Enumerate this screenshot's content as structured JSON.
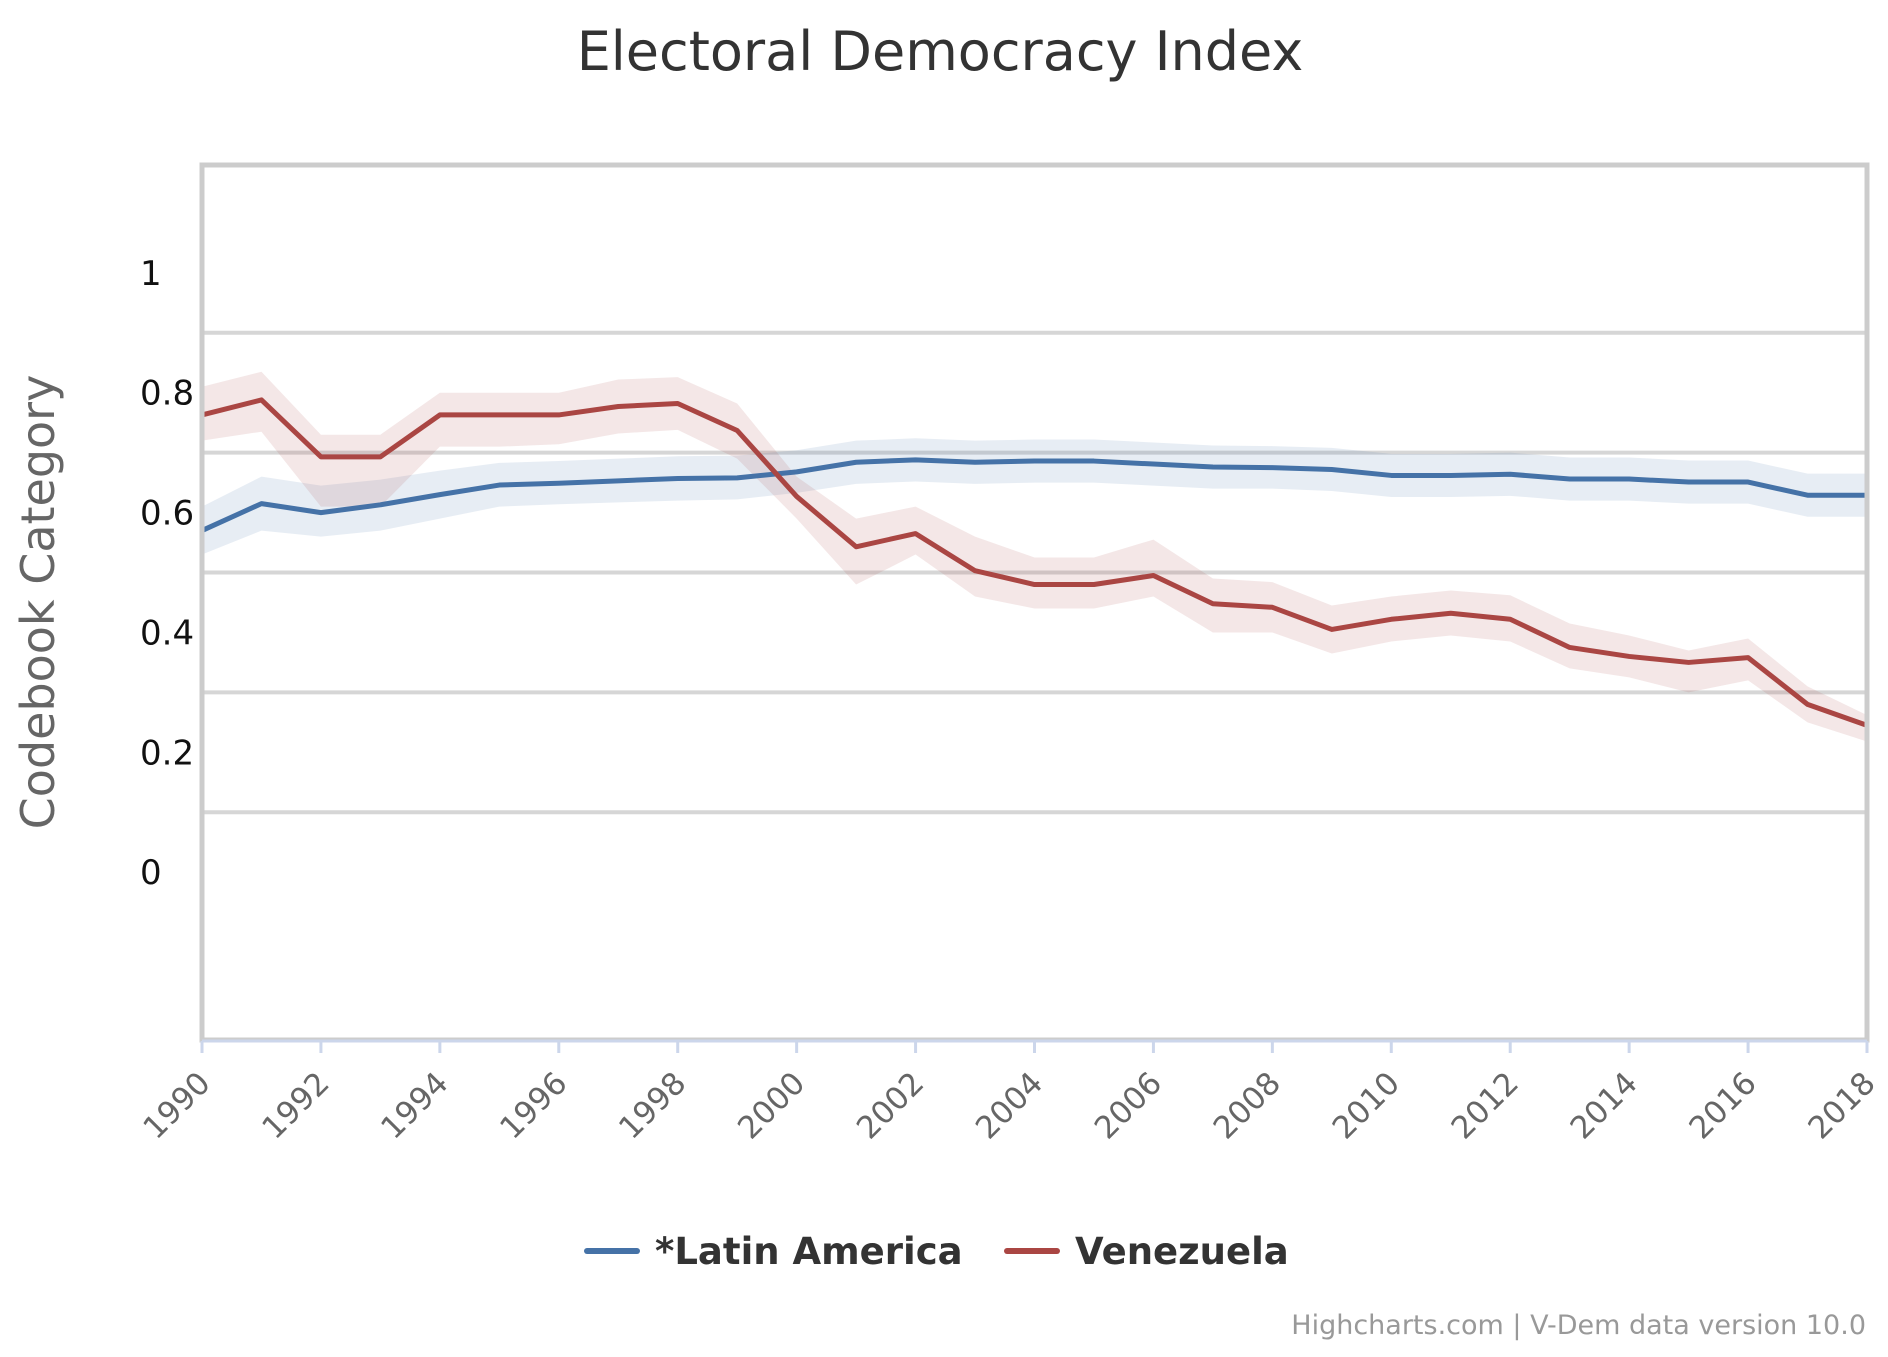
{
  "chart_data": {
    "type": "line",
    "title": "Electoral Democracy Index",
    "ylabel": "Codebook Category",
    "xlabel": "",
    "xlim": [
      1990,
      2018
    ],
    "ylim": [
      -0.28,
      1.18
    ],
    "x_ticks": [
      "1990",
      "1992",
      "1994",
      "1996",
      "1998",
      "2000",
      "2002",
      "2004",
      "2006",
      "2008",
      "2010",
      "2012",
      "2014",
      "2016",
      "2018"
    ],
    "y_ticks": [
      {
        "label": "1",
        "value": 1
      },
      {
        "label": "0.8",
        "value": 0.8
      },
      {
        "label": "0.6",
        "value": 0.6
      },
      {
        "label": "0.4",
        "value": 0.4
      },
      {
        "label": "0.2",
        "value": 0.2
      },
      {
        "label": "0",
        "value": 0
      }
    ],
    "grid_lines": [
      0.9,
      0.7,
      0.5,
      0.3,
      0.1
    ],
    "grid": true,
    "legend_position": "bottom-center",
    "x": [
      1990,
      1991,
      1992,
      1993,
      1994,
      1995,
      1996,
      1997,
      1998,
      1999,
      2000,
      2001,
      2002,
      2003,
      2004,
      2005,
      2006,
      2007,
      2008,
      2009,
      2010,
      2011,
      2012,
      2013,
      2014,
      2015,
      2016,
      2017,
      2018
    ],
    "series": [
      {
        "name": "*Latin America",
        "color": "#4572a7",
        "values": [
          0.57,
          0.615,
          0.6,
          0.613,
          0.63,
          0.646,
          0.649,
          0.653,
          0.657,
          0.658,
          0.668,
          0.684,
          0.688,
          0.684,
          0.686,
          0.686,
          0.681,
          0.676,
          0.675,
          0.672,
          0.662,
          0.662,
          0.664,
          0.656,
          0.656,
          0.651,
          0.651,
          0.629,
          0.629
        ],
        "lower": [
          0.53,
          0.57,
          0.56,
          0.57,
          0.59,
          0.61,
          0.614,
          0.617,
          0.62,
          0.622,
          0.633,
          0.648,
          0.652,
          0.648,
          0.65,
          0.65,
          0.645,
          0.64,
          0.64,
          0.636,
          0.626,
          0.626,
          0.628,
          0.62,
          0.62,
          0.615,
          0.615,
          0.593,
          0.593
        ],
        "upper": [
          0.61,
          0.66,
          0.645,
          0.655,
          0.67,
          0.683,
          0.686,
          0.69,
          0.694,
          0.695,
          0.704,
          0.72,
          0.724,
          0.72,
          0.722,
          0.722,
          0.717,
          0.712,
          0.711,
          0.708,
          0.698,
          0.698,
          0.7,
          0.692,
          0.692,
          0.687,
          0.687,
          0.665,
          0.665
        ]
      },
      {
        "name": "Venezuela",
        "color": "#aa4643",
        "values": [
          0.763,
          0.788,
          0.693,
          0.693,
          0.763,
          0.763,
          0.763,
          0.777,
          0.782,
          0.737,
          0.627,
          0.543,
          0.565,
          0.503,
          0.48,
          0.48,
          0.495,
          0.448,
          0.442,
          0.405,
          0.422,
          0.432,
          0.422,
          0.375,
          0.36,
          0.35,
          0.358,
          0.28,
          0.245
        ],
        "lower": [
          0.72,
          0.735,
          0.61,
          0.61,
          0.71,
          0.71,
          0.714,
          0.732,
          0.738,
          0.69,
          0.59,
          0.48,
          0.53,
          0.46,
          0.44,
          0.44,
          0.46,
          0.4,
          0.4,
          0.365,
          0.385,
          0.395,
          0.385,
          0.34,
          0.325,
          0.3,
          0.32,
          0.25,
          0.218
        ],
        "upper": [
          0.81,
          0.835,
          0.73,
          0.73,
          0.8,
          0.8,
          0.8,
          0.822,
          0.826,
          0.782,
          0.66,
          0.59,
          0.61,
          0.56,
          0.525,
          0.525,
          0.555,
          0.49,
          0.484,
          0.445,
          0.46,
          0.47,
          0.462,
          0.415,
          0.395,
          0.37,
          0.39,
          0.31,
          0.262
        ]
      }
    ]
  },
  "credits": "Highcharts.com | V-Dem data version 10.0"
}
